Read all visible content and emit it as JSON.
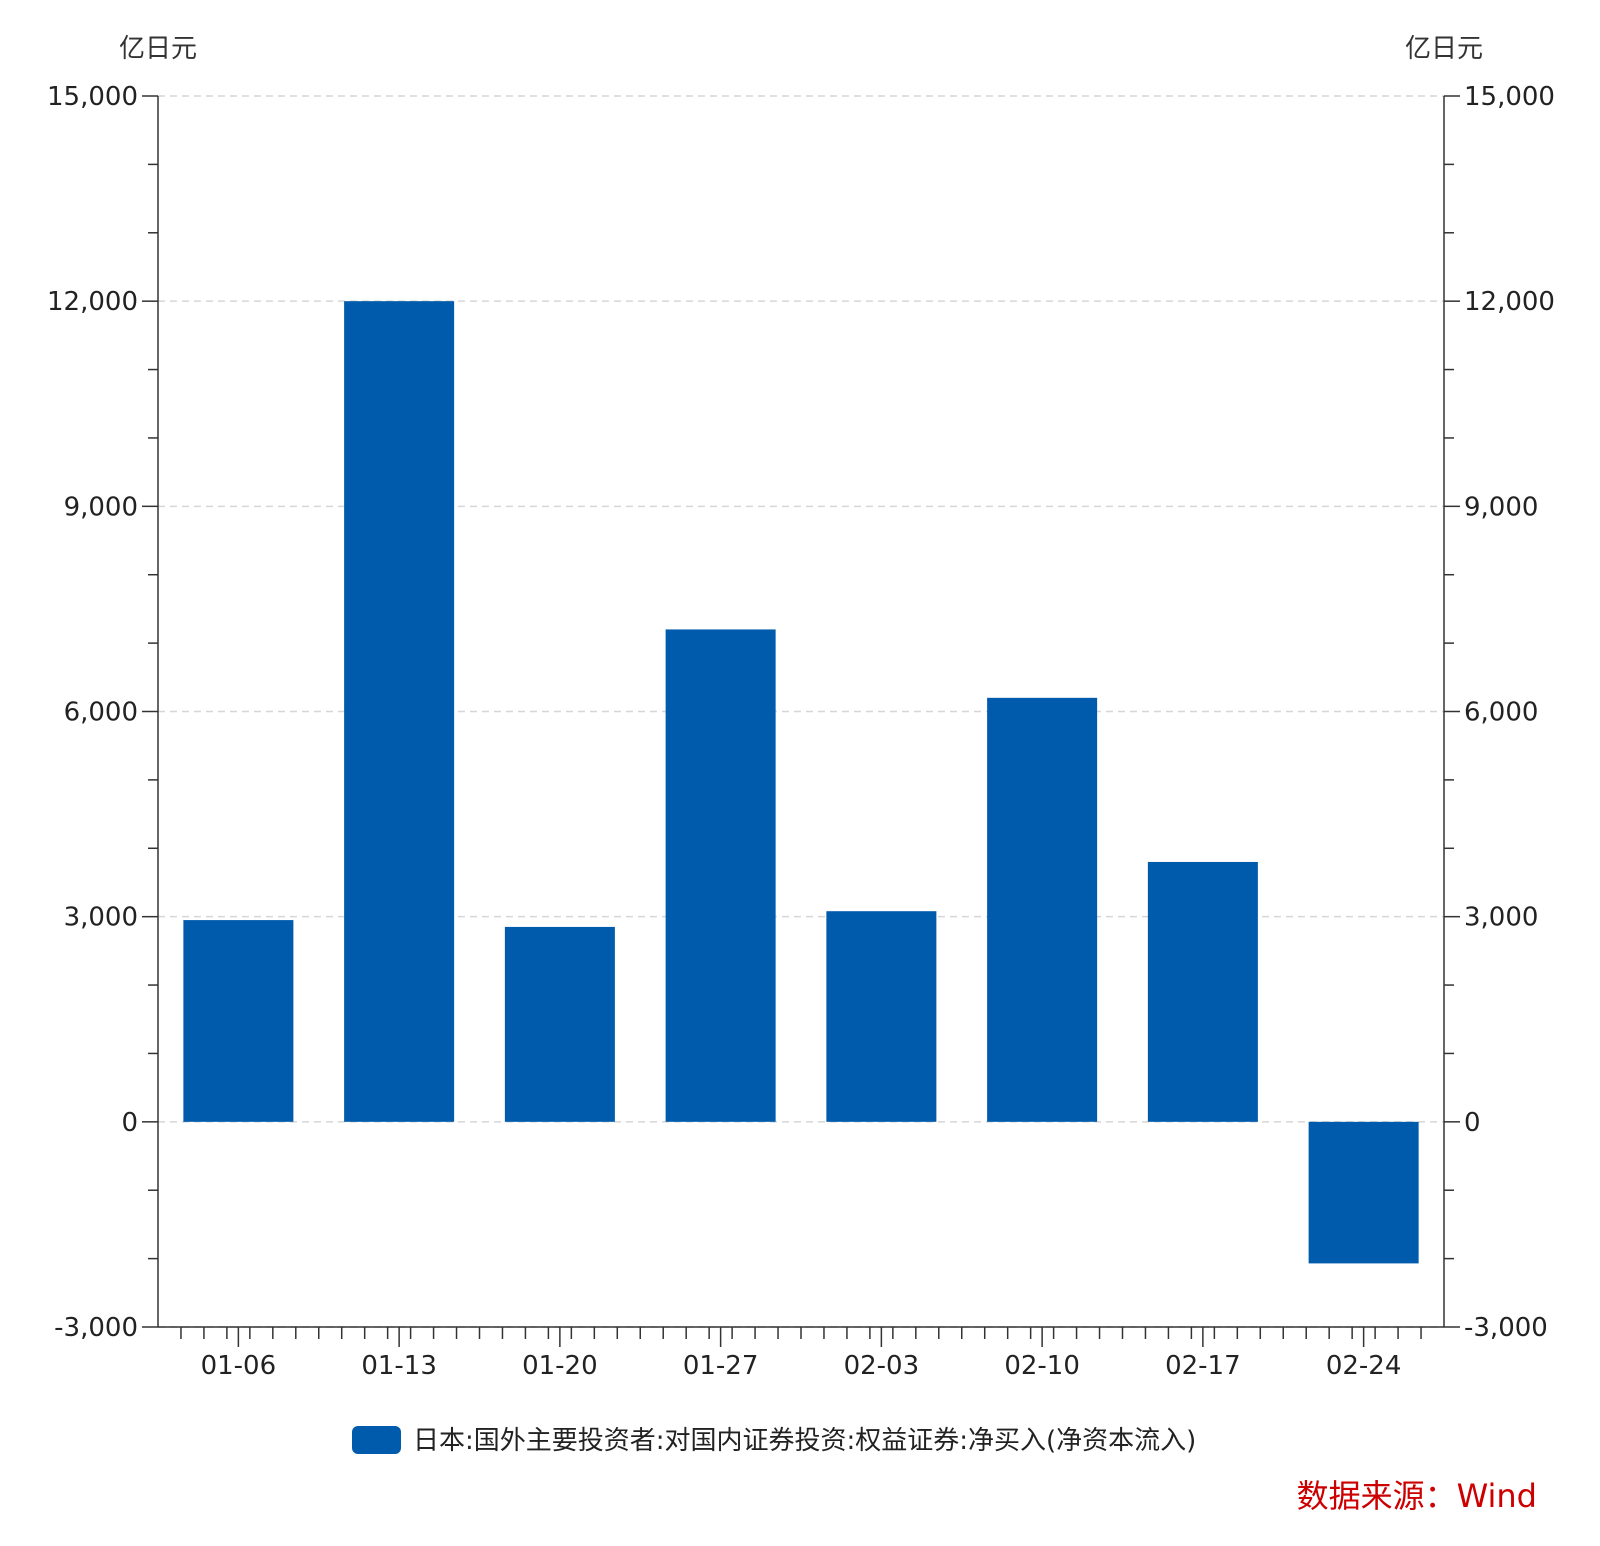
{
  "chart_data": {
    "type": "bar",
    "categories": [
      "01-06",
      "01-13",
      "01-20",
      "01-27",
      "02-03",
      "02-10",
      "02-17",
      "02-24"
    ],
    "series": [
      {
        "name": "日本:国外主要投资者:对国内证券投资:权益证券:净买入(净资本流入)",
        "values": [
          2950,
          12000,
          2850,
          7200,
          3080,
          6200,
          3800,
          -2070
        ],
        "color": "#005BAC"
      }
    ],
    "ylim": [
      -3000,
      15000
    ],
    "y_ticks": [
      -3000,
      0,
      3000,
      6000,
      9000,
      12000,
      15000
    ],
    "y_tick_labels": [
      "-3,000",
      "0",
      "3,000",
      "6,000",
      "9,000",
      "12,000",
      "15,000"
    ],
    "y_unit_left": "亿日元",
    "y_unit_right": "亿日元",
    "grid": true,
    "legend_position": "bottom",
    "source": "数据来源：Wind",
    "source_color": "#CC0000"
  }
}
